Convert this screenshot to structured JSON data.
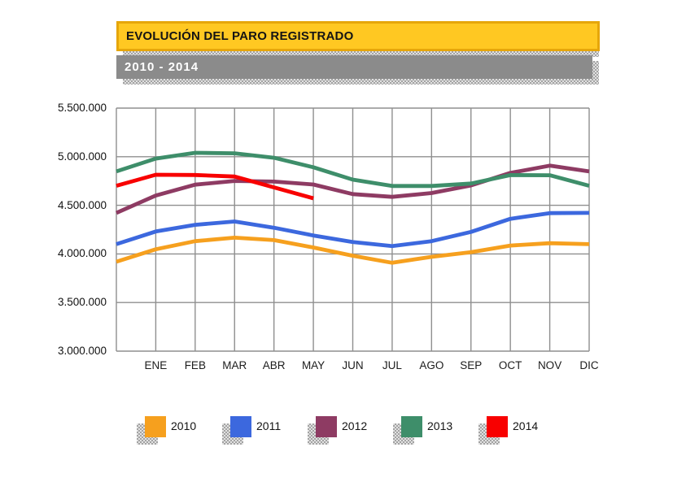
{
  "header": {
    "title": "EVOLUCIÓN DEL PARO REGISTRADO",
    "subtitle": "2010 - 2014",
    "title_bg": "#ffc822",
    "title_border": "#e6a60a",
    "subtitle_bg": "#8b8b8b"
  },
  "chart_data": {
    "type": "line",
    "title": "EVOLUCIÓN DEL PARO REGISTRADO",
    "subtitle": "2010 - 2014",
    "grid": true,
    "legend_position": "bottom",
    "ylim": [
      3000000,
      5500000
    ],
    "y_ticks": [
      {
        "value": 5500000,
        "label": "5.500.000"
      },
      {
        "value": 5000000,
        "label": "5.000.000"
      },
      {
        "value": 4500000,
        "label": "4.500.000"
      },
      {
        "value": 4000000,
        "label": "4.000.000"
      },
      {
        "value": 3500000,
        "label": "3.500.000"
      },
      {
        "value": 3000000,
        "label": "3.000.000"
      }
    ],
    "x_labels": [
      "ENE",
      "FEB",
      "MAR",
      "ABR",
      "MAY",
      "JUN",
      "JUL",
      "AGO",
      "SEP",
      "OCT",
      "NOV",
      "DIC"
    ],
    "axis_note": "each series begins at the left axis edge with the previous December value (dec_prev_year), one point per month thereafter",
    "series": [
      {
        "name": "2010",
        "color": "#f6a01e",
        "dec_prev_year": 3920000,
        "values": [
          4048000,
          4131000,
          4167000,
          4142000,
          4066000,
          3982000,
          3909000,
          3970000,
          4018000,
          4086000,
          4110000,
          4100000
        ]
      },
      {
        "name": "2011",
        "color": "#3c68de",
        "dec_prev_year": 4100000,
        "values": [
          4231000,
          4299000,
          4334000,
          4269000,
          4190000,
          4122000,
          4080000,
          4131000,
          4227000,
          4361000,
          4420000,
          4422000
        ]
      },
      {
        "name": "2012",
        "color": "#8e3b63",
        "dec_prev_year": 4422000,
        "values": [
          4600000,
          4712000,
          4751000,
          4744000,
          4714000,
          4615000,
          4587000,
          4626000,
          4705000,
          4834000,
          4908000,
          4849000
        ]
      },
      {
        "name": "2013",
        "color": "#3e8e6a",
        "dec_prev_year": 4849000,
        "values": [
          4981000,
          5040000,
          5035000,
          4989000,
          4891000,
          4764000,
          4699000,
          4699000,
          4724000,
          4811000,
          4809000,
          4701000
        ]
      },
      {
        "name": "2014",
        "color": "#f80000",
        "dec_prev_year": 4701000,
        "values": [
          4814000,
          4812000,
          4796000,
          4684000,
          4572000
        ]
      }
    ]
  }
}
